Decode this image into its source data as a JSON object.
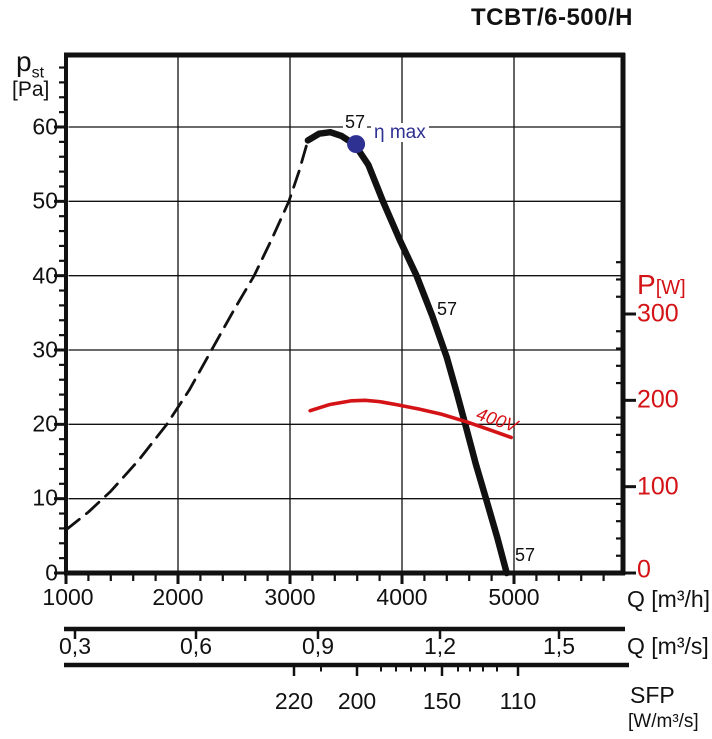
{
  "title": "TCBT/6-500/H",
  "y_left": {
    "name": "p",
    "sub": "st",
    "unit": "[Pa]",
    "ticks": [
      "60",
      "50",
      "40",
      "30",
      "20",
      "10",
      "0"
    ]
  },
  "y_right": {
    "name": "P",
    "unit": "[W]",
    "ticks": [
      "300",
      "200",
      "100",
      "0"
    ]
  },
  "x_m3h": {
    "axis_label": "Q [m³/h]",
    "ticks": [
      "1000",
      "2000",
      "3000",
      "4000",
      "5000"
    ]
  },
  "x_m3s": {
    "axis_label": "Q [m³/s]",
    "ticks": [
      "0,3",
      "0,6",
      "0,9",
      "1,2",
      "1,5"
    ]
  },
  "sfp": {
    "axis_label": "SFP",
    "axis_unit": "[W/m³/s]",
    "ticks": [
      "220",
      "200",
      "150",
      "110"
    ]
  },
  "labels": {
    "curve_top": "57",
    "curve_mid": "57",
    "curve_bottom": "57",
    "eta_max": "η max",
    "voltage": "400V"
  },
  "colors": {
    "ink": "#111111",
    "accent_red": "#d41317",
    "accent_navy": "#2e3192"
  },
  "chart_data": {
    "type": "line",
    "title": "TCBT/6-500/H",
    "xlabel": "Q [m³/h]",
    "ylabel_left": "p st [Pa]",
    "ylabel_right": "P [W]",
    "x_range_m3h": [
      1000,
      5970
    ],
    "ylim_left_Pa": [
      0,
      70
    ],
    "ylim_right_W": [
      0,
      360
    ],
    "x_major_ticks_m3h": [
      1000,
      2000,
      3000,
      4000,
      5000
    ],
    "y_left_major_ticks_Pa": [
      0,
      10,
      20,
      30,
      40,
      50,
      60
    ],
    "y_right_major_ticks_W": [
      0,
      100,
      200,
      300
    ],
    "x_m3s_ticks": [
      0.3,
      0.6,
      0.9,
      1.2,
      1.5
    ],
    "sfp_ticks_W_per_m3s": [
      220,
      200,
      150,
      110
    ],
    "grid": true,
    "series": [
      {
        "name": "fan-curve-extension-dashed",
        "label": "",
        "style": "dashed",
        "axis": "left",
        "color": "#111111",
        "width": 2.8,
        "dash": "17 9",
        "points": [
          [
            1000,
            5.8
          ],
          [
            1200,
            8.2
          ],
          [
            1400,
            11
          ],
          [
            1650,
            15.2
          ],
          [
            1900,
            20
          ],
          [
            2100,
            24.6
          ],
          [
            2300,
            30
          ],
          [
            2500,
            35.4
          ],
          [
            2680,
            40
          ],
          [
            2840,
            45
          ],
          [
            2990,
            50
          ],
          [
            3080,
            54
          ],
          [
            3160,
            58.2
          ]
        ]
      },
      {
        "name": "fan-curve-57",
        "label": "57",
        "style": "solid",
        "axis": "left",
        "color": "#111111",
        "width": 6.5,
        "dash": "",
        "points": [
          [
            3160,
            58.2
          ],
          [
            3260,
            59.1
          ],
          [
            3360,
            59.3
          ],
          [
            3460,
            58.8
          ],
          [
            3580,
            57.6
          ],
          [
            3700,
            54.9
          ],
          [
            3830,
            50
          ],
          [
            3980,
            44.8
          ],
          [
            4130,
            40
          ],
          [
            4270,
            34.6
          ],
          [
            4400,
            29
          ],
          [
            4490,
            24.2
          ],
          [
            4565,
            20
          ],
          [
            4660,
            14.6
          ],
          [
            4750,
            10
          ],
          [
            4850,
            4.8
          ],
          [
            4935,
            0
          ]
        ]
      },
      {
        "name": "power-curve-400V",
        "label": "400V",
        "style": "solid",
        "axis": "right",
        "color": "#d41317",
        "width": 3.6,
        "dash": "",
        "points": [
          [
            3180,
            188
          ],
          [
            3350,
            195
          ],
          [
            3550,
            199.5
          ],
          [
            3670,
            200
          ],
          [
            3800,
            198.5
          ],
          [
            3950,
            195
          ],
          [
            4150,
            190
          ],
          [
            4350,
            184
          ],
          [
            4580,
            175
          ],
          [
            4780,
            166
          ],
          [
            4975,
            157
          ]
        ]
      }
    ],
    "markers": [
      {
        "name": "eta-max-point",
        "label": "η max",
        "axis": "left",
        "point": [
          3590,
          57.7
        ],
        "color": "#2e3192",
        "radius": 9
      }
    ]
  }
}
